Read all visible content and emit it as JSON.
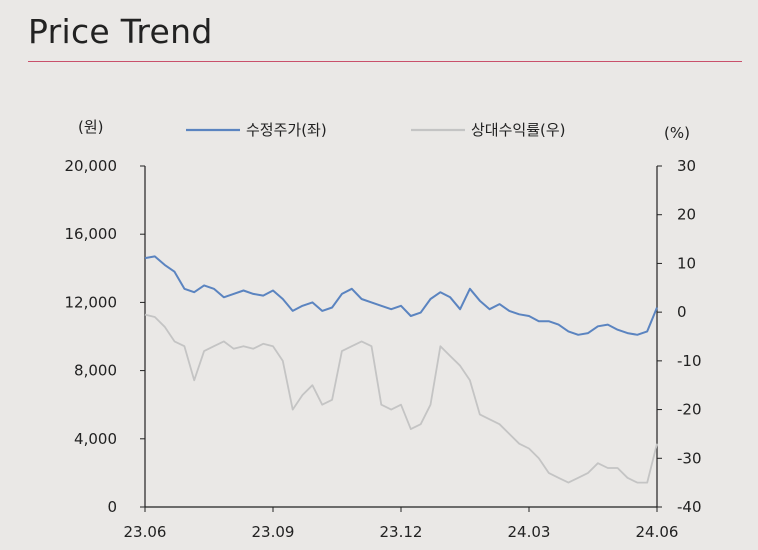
{
  "page": {
    "title": "Price Trend"
  },
  "chart_data": {
    "type": "line",
    "x_ticks": [
      "23.06",
      "23.09",
      "23.12",
      "24.03",
      "24.06"
    ],
    "left_axis": {
      "unit": "(원)",
      "ylim": [
        0,
        20000
      ],
      "ticks": [
        "20,000",
        "16,000",
        "12,000",
        "8,000",
        "4,000",
        "0"
      ],
      "tick_values": [
        20000,
        16000,
        12000,
        8000,
        4000,
        0
      ]
    },
    "right_axis": {
      "unit": "(%)",
      "ylim": [
        -40,
        30
      ],
      "ticks": [
        "30",
        "20",
        "10",
        "0",
        "-10",
        "-20",
        "-30",
        "-40"
      ],
      "tick_values": [
        30,
        20,
        10,
        0,
        -10,
        -20,
        -30,
        -40
      ]
    },
    "legend": {
      "placement": "top"
    },
    "colors": {
      "price": "#5b84c0",
      "relative": "#c4c4c4"
    },
    "series": [
      {
        "name": "수정주가(좌)",
        "axis": "left",
        "x": [
          "2023-06-01",
          "2023-06-08",
          "2023-06-15",
          "2023-06-22",
          "2023-06-29",
          "2023-07-06",
          "2023-07-13",
          "2023-07-20",
          "2023-07-27",
          "2023-08-03",
          "2023-08-10",
          "2023-08-17",
          "2023-08-24",
          "2023-08-31",
          "2023-09-07",
          "2023-09-14",
          "2023-09-21",
          "2023-09-28",
          "2023-10-05",
          "2023-10-12",
          "2023-10-19",
          "2023-10-26",
          "2023-11-02",
          "2023-11-09",
          "2023-11-16",
          "2023-11-23",
          "2023-11-30",
          "2023-12-07",
          "2023-12-14",
          "2023-12-21",
          "2023-12-28",
          "2024-01-04",
          "2024-01-11",
          "2024-01-18",
          "2024-01-25",
          "2024-02-01",
          "2024-02-08",
          "2024-02-15",
          "2024-02-22",
          "2024-02-29",
          "2024-03-07",
          "2024-03-14",
          "2024-03-21",
          "2024-03-28",
          "2024-04-04",
          "2024-04-11",
          "2024-04-18",
          "2024-04-25",
          "2024-05-02",
          "2024-05-09",
          "2024-05-16",
          "2024-05-23",
          "2024-05-30"
        ],
        "values": [
          14600,
          14700,
          14200,
          13800,
          12800,
          12600,
          13000,
          12800,
          12300,
          12500,
          12700,
          12500,
          12400,
          12700,
          12200,
          11500,
          11800,
          12000,
          11500,
          11700,
          12500,
          12800,
          12200,
          12000,
          11800,
          11600,
          11800,
          11200,
          11400,
          12200,
          12600,
          12300,
          11600,
          12800,
          12100,
          11600,
          11900,
          11500,
          11300,
          11200,
          10900,
          10900,
          10700,
          10300,
          10100,
          10200,
          10600,
          10700,
          10400,
          10200,
          10100,
          10300,
          11700
        ]
      },
      {
        "name": "상대수익률(우)",
        "axis": "right",
        "values": [
          -0.5,
          -1,
          -3,
          -6,
          -7,
          -14,
          -8,
          -7,
          -6,
          -7.5,
          -7,
          -7.5,
          -6.5,
          -7,
          -10,
          -20,
          -17,
          -15,
          -19,
          -18,
          -8,
          -7,
          -6,
          -7,
          -19,
          -20,
          -19,
          -24,
          -23,
          -19,
          -7,
          -9,
          -11,
          -14,
          -21,
          -22,
          -23,
          -25,
          -27,
          -28,
          -30,
          -33,
          -34,
          -35,
          -34,
          -33,
          -31,
          -32,
          -32,
          -34,
          -35,
          -35,
          -27
        ]
      }
    ]
  }
}
